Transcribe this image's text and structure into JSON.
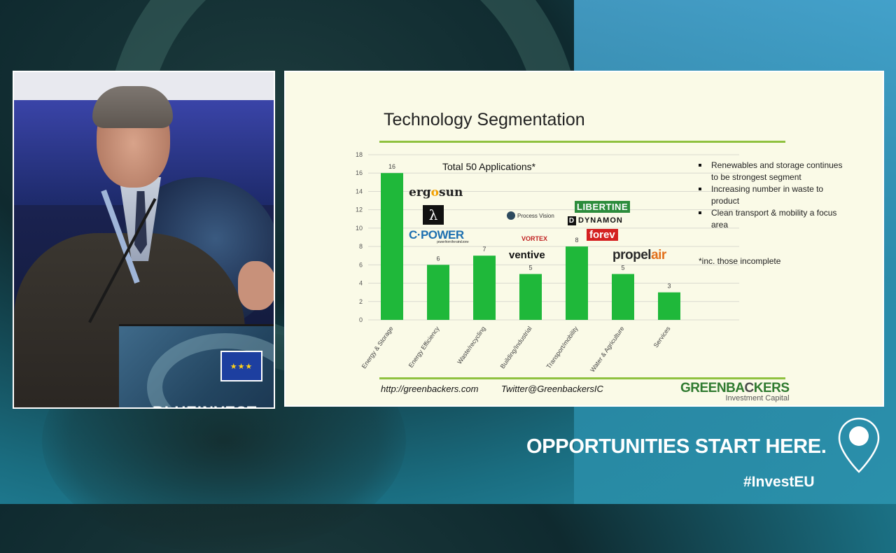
{
  "branding": {
    "tagline": "OPPORTUNITIES START HERE.",
    "hashtag": "#InvestEU",
    "podium_text": "BLUEINVEST"
  },
  "slide": {
    "title": "Technology Segmentation",
    "total_label": "Total 50 Applications*",
    "bullets": [
      "Renewables and storage continues to be strongest segment",
      "Increasing number in waste to product",
      "Clean transport & mobility a focus area"
    ],
    "footnote": "*inc. those incomplete",
    "footer_url": "http://greenbackers.com",
    "footer_twitter": "Twitter@GreenbackersIC",
    "company_logo_main_a": "GREENBA",
    "company_logo_main_b": "C",
    "company_logo_main_c": "KERS",
    "company_logo_sub": "Investment Capital",
    "logos": {
      "ergosun_a": "erg",
      "ergosun_b": "o",
      "ergosun_c": "sun",
      "lambda": "λ",
      "cpower": "C·POWER",
      "cpower_tag": "power from the wind zone",
      "process_vision": "Process Vision",
      "vortex": "VORTEX",
      "ventive": "ventive",
      "libertine": "LIBERTINE",
      "dynamon_icon": "D",
      "dynamon": "DYNAMON",
      "forev": "forev",
      "propelair_a": "propel",
      "propelair_b": "air"
    }
  },
  "chart_data": {
    "type": "bar",
    "categories": [
      "Energy & Storage",
      "Energy Efficiency",
      "Waste/recycling",
      "Building/Industrial",
      "Transport/mobility",
      "Water & Agriculture",
      "Services"
    ],
    "values": [
      16,
      6,
      7,
      5,
      8,
      5,
      3
    ],
    "ylim": [
      0,
      18
    ],
    "yticks": [
      0,
      2,
      4,
      6,
      8,
      10,
      12,
      14,
      16,
      18
    ],
    "grid": true,
    "bar_color": "#1fb83a"
  }
}
